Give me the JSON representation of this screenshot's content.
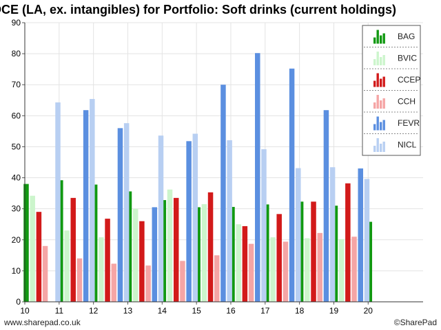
{
  "chart_data": {
    "type": "bar",
    "title": "ROCE (LA, ex. intangibles) for Portfolio: Soft drinks (current holdings)",
    "xlabel": "",
    "ylabel": "",
    "ylim": [
      0,
      90
    ],
    "yticks": [
      0,
      10,
      20,
      30,
      40,
      50,
      60,
      70,
      80,
      90
    ],
    "xlim": [
      10,
      21.6
    ],
    "xticks": [
      10,
      11,
      12,
      13,
      14,
      15,
      16,
      17,
      18,
      19,
      20
    ],
    "grid": true,
    "legend_position": "top-right",
    "series": [
      {
        "name": "BAG",
        "color": "#119911",
        "x": [
          10,
          11,
          12,
          13,
          14,
          15,
          16,
          17,
          18,
          19,
          20
        ],
        "values": [
          38,
          39.2,
          37.8,
          35.6,
          32.8,
          30.5,
          30.6,
          31.4,
          32.3,
          31,
          25.8
        ]
      },
      {
        "name": "BVIC",
        "color": "#ccf5cc",
        "x": [
          10,
          11,
          12,
          13,
          14,
          15,
          16,
          17,
          18,
          19
        ],
        "values": [
          34.2,
          23,
          20.8,
          30,
          36.2,
          31.5,
          25,
          20.8,
          20.5,
          20.2
        ]
      },
      {
        "name": "CCEP",
        "color": "#d21a1a",
        "x": [
          10,
          11,
          12,
          13,
          14,
          15,
          16,
          17,
          18,
          19
        ],
        "values": [
          29,
          33.5,
          26.8,
          26,
          33.5,
          35.3,
          24.4,
          28.3,
          32.3,
          38.2
        ]
      },
      {
        "name": "CCH",
        "color": "#f5a5a5",
        "x": [
          10,
          11,
          12,
          13,
          14,
          15,
          16,
          17,
          18,
          19
        ],
        "values": [
          18,
          14,
          12.3,
          11.7,
          13.2,
          15,
          18.7,
          19.4,
          22.2,
          21
        ]
      },
      {
        "name": "FEVR",
        "color": "#5b8fe0",
        "x": [
          11,
          12,
          13,
          14,
          15,
          16,
          17,
          18,
          19
        ],
        "values": [
          61.8,
          56,
          30.5,
          51.8,
          70,
          80.2,
          75.2,
          61.8,
          43
        ]
      },
      {
        "name": "NICL",
        "color": "#b8cff2",
        "x": [
          10,
          11,
          12,
          13,
          14,
          15,
          16,
          17,
          18,
          19
        ],
        "values": [
          64.3,
          65.4,
          57.6,
          53.6,
          54.2,
          52.1,
          49.2,
          43.1,
          43.4,
          39.6
        ]
      }
    ]
  },
  "footer": {
    "left": "www.sharepad.co.uk",
    "right": "©SharePad"
  }
}
